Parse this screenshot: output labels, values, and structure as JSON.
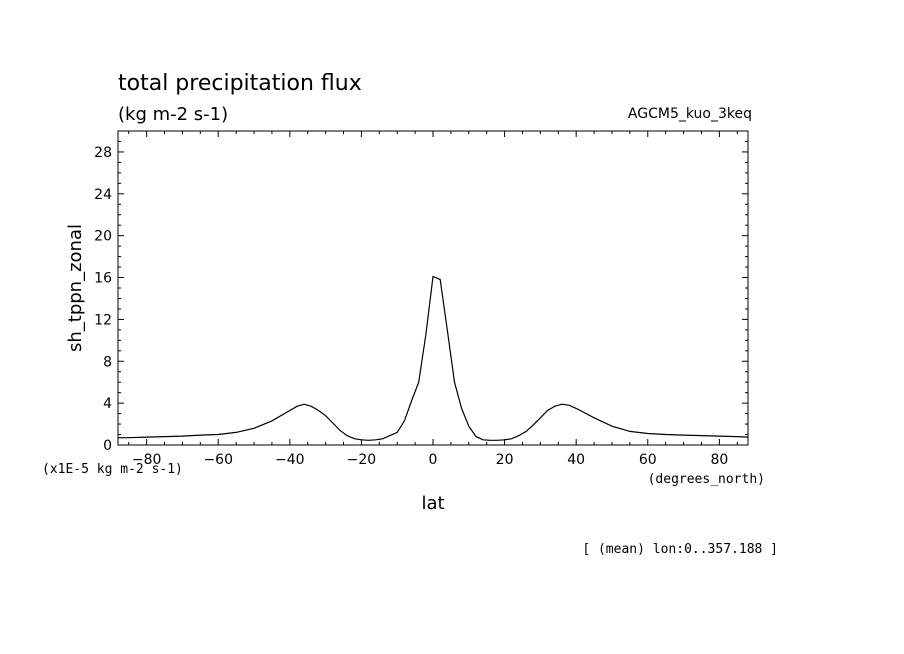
{
  "chart_data": {
    "type": "line",
    "title": "total precipitation flux",
    "units": "(kg m-2 s-1)",
    "dataset": "AGCM5_kuo_3keq",
    "ylabel": "sh_tppn_zonal",
    "yscale_note": "(x1E-5 kg m-2 s-1)",
    "xlabel": "lat",
    "xunits": "(degrees_north)",
    "footer": "[ (mean) lon:0..357.188 ]",
    "xlim": [
      -88,
      88
    ],
    "ylim": [
      0,
      30
    ],
    "xticks": [
      -80,
      -60,
      -40,
      -20,
      0,
      20,
      40,
      60,
      80
    ],
    "yticks": [
      0,
      4,
      8,
      12,
      16,
      20,
      24,
      28
    ],
    "x": [
      -88,
      -85,
      -80,
      -75,
      -70,
      -65,
      -60,
      -55,
      -50,
      -45,
      -40,
      -38,
      -36,
      -34,
      -32,
      -30,
      -28,
      -26,
      -24,
      -22,
      -20,
      -18,
      -16,
      -14,
      -12,
      -10,
      -8,
      -6,
      -4,
      -2,
      0,
      2,
      4,
      6,
      8,
      10,
      12,
      14,
      16,
      18,
      20,
      22,
      24,
      26,
      28,
      30,
      32,
      34,
      36,
      38,
      40,
      45,
      50,
      55,
      60,
      65,
      70,
      75,
      80,
      85,
      88
    ],
    "y": [
      0.7,
      0.7,
      0.75,
      0.8,
      0.85,
      0.95,
      1.0,
      1.2,
      1.6,
      2.3,
      3.3,
      3.7,
      3.9,
      3.7,
      3.3,
      2.8,
      2.1,
      1.4,
      0.9,
      0.6,
      0.5,
      0.45,
      0.5,
      0.6,
      0.9,
      1.2,
      2.3,
      4.2,
      6.0,
      10.5,
      16.1,
      15.8,
      11.0,
      6.0,
      3.5,
      1.8,
      0.8,
      0.5,
      0.45,
      0.45,
      0.5,
      0.6,
      0.9,
      1.3,
      1.9,
      2.6,
      3.3,
      3.7,
      3.9,
      3.8,
      3.5,
      2.6,
      1.8,
      1.3,
      1.1,
      1.0,
      0.95,
      0.9,
      0.85,
      0.8,
      0.75
    ]
  }
}
